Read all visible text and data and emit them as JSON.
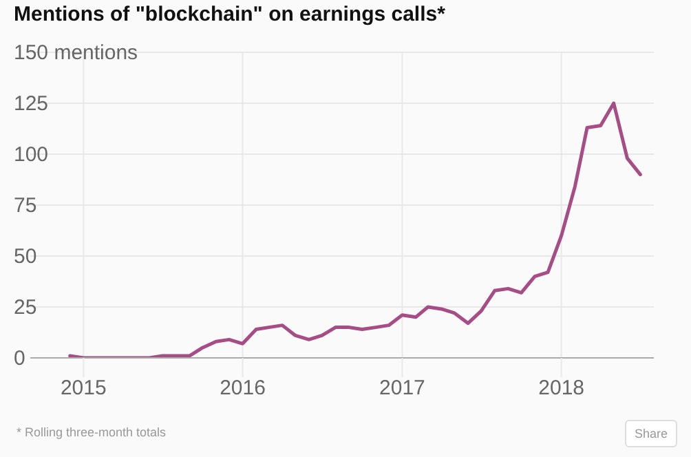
{
  "chart_data": {
    "type": "line",
    "title": "Mentions of \"blockchain\" on earnings calls*",
    "x": [
      "2014-12",
      "2015-01",
      "2015-02",
      "2015-03",
      "2015-04",
      "2015-05",
      "2015-06",
      "2015-07",
      "2015-08",
      "2015-09",
      "2015-10",
      "2015-11",
      "2015-12",
      "2016-01",
      "2016-02",
      "2016-03",
      "2016-04",
      "2016-05",
      "2016-06",
      "2016-07",
      "2016-08",
      "2016-09",
      "2016-10",
      "2016-11",
      "2016-12",
      "2017-01",
      "2017-02",
      "2017-03",
      "2017-04",
      "2017-05",
      "2017-06",
      "2017-07",
      "2017-08",
      "2017-09",
      "2017-10",
      "2017-11",
      "2017-12",
      "2018-01",
      "2018-02",
      "2018-03",
      "2018-04",
      "2018-05",
      "2018-06",
      "2018-07"
    ],
    "series": [
      {
        "color": "#a64d86",
        "values": [
          1,
          0,
          0,
          0,
          0,
          0,
          0,
          1,
          1,
          1,
          5,
          8,
          9,
          7,
          14,
          15,
          16,
          11,
          9,
          11,
          15,
          15,
          14,
          15,
          16,
          21,
          20,
          25,
          24,
          22,
          17,
          23,
          33,
          34,
          32,
          40,
          42,
          60,
          84,
          113,
          114,
          125,
          98,
          90
        ]
      }
    ],
    "xlim": [
      "2014-09",
      "2018-08"
    ],
    "xticks": [
      "2015",
      "2016",
      "2017",
      "2018"
    ],
    "ylim": [
      0,
      150
    ],
    "yticks": [
      0,
      25,
      50,
      75,
      100,
      125,
      {
        "value": 150,
        "label": "150 mentions"
      }
    ],
    "grid": true,
    "marker": "none",
    "line_style": "solid",
    "annotations": [
      "* Rolling three-month totals",
      "Share"
    ]
  }
}
